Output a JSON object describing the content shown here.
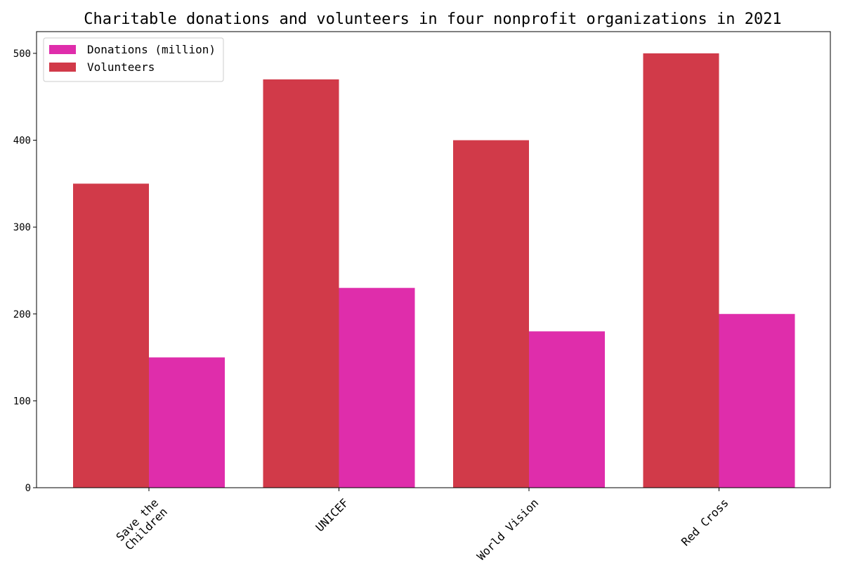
{
  "chart_data": {
    "type": "bar",
    "title": "Charitable donations and volunteers in four nonprofit organizations in 2021",
    "xlabel": "",
    "ylabel": "",
    "categories": [
      [
        "Save the",
        "Children"
      ],
      [
        "UNICEF"
      ],
      [
        "World Vision"
      ],
      [
        "Red Cross"
      ]
    ],
    "series": [
      {
        "name": "Volunteers",
        "color": "#d13a49",
        "values": [
          350,
          470,
          400,
          500
        ]
      },
      {
        "name": "Donations (million)",
        "color": "#df2dab",
        "values": [
          150,
          230,
          180,
          200
        ]
      }
    ],
    "legend_order": [
      1,
      0
    ],
    "legend_position": "top-left",
    "ylim": [
      0,
      525
    ],
    "yticks": [
      0,
      100,
      200,
      300,
      400,
      500
    ],
    "grid": false
  }
}
